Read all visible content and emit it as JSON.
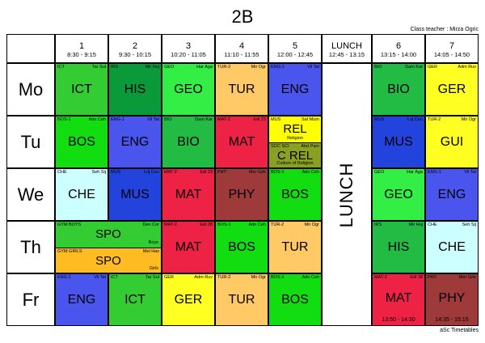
{
  "title": "2B",
  "class_teacher": "Class teacher : Mirza Ogric",
  "footer": "aSc Timetables",
  "periods": [
    {
      "num": "1",
      "time": "8:30 - 9:15"
    },
    {
      "num": "2",
      "time": "9:30 - 10:15"
    },
    {
      "num": "3",
      "time": "10:20 - 11:05"
    },
    {
      "num": "4",
      "time": "11:10 - 11:55"
    },
    {
      "num": "5",
      "time": "12:00 - 12:45"
    },
    {
      "num": "LUNCH",
      "time": "12:45 - 13:15"
    },
    {
      "num": "6",
      "time": "13:15 - 14:00"
    },
    {
      "num": "7",
      "time": "14:05 - 14:50"
    }
  ],
  "lunch_label": "LUNCH",
  "days": [
    {
      "name": "Mo",
      "slots": [
        {
          "parts": [
            {
              "cls": "ICT",
              "tch": "Tar Sul",
              "subj": "ICT",
              "color": "#33cc33"
            }
          ]
        },
        {
          "parts": [
            {
              "cls": "IRS",
              "tch": "Mir Huj",
              "subj": "HIS",
              "color": "#0b9a3a"
            }
          ]
        },
        {
          "parts": [
            {
              "cls": "GEO",
              "tch": "Har Aga",
              "subj": "GEO",
              "color": "#33ee44"
            }
          ]
        },
        {
          "parts": [
            {
              "cls": "TUR-2",
              "tch": "Mir Ogr",
              "subj": "TUR",
              "color": "#ffc966"
            }
          ]
        },
        {
          "parts": [
            {
              "cls": "ENG-1",
              "tch": "Vil Tat",
              "subj": "ENG",
              "color": "#4a55ee"
            }
          ]
        },
        null,
        {
          "parts": [
            {
              "cls": "BIO",
              "tch": "Dam Kar",
              "subj": "BIO",
              "color": "#22bb44"
            }
          ]
        },
        {
          "parts": [
            {
              "cls": "GER",
              "tch": "Adm Ruv",
              "subj": "GER",
              "color": "#ffff22"
            }
          ]
        }
      ]
    },
    {
      "name": "Tu",
      "slots": [
        {
          "parts": [
            {
              "cls": "BOS-1",
              "tch": "Adn Ceh",
              "subj": "BOS",
              "color": "#11dd11"
            }
          ]
        },
        {
          "parts": [
            {
              "cls": "ENG-1",
              "tch": "Vil Tat",
              "subj": "ENG",
              "color": "#4a55ee"
            }
          ]
        },
        {
          "parts": [
            {
              "cls": "BIO",
              "tch": "Dam Kar",
              "subj": "BIO",
              "color": "#22bb44"
            }
          ]
        },
        {
          "parts": [
            {
              "cls": "MAT-2",
              "tch": "Edi 23",
              "subj": "MAT",
              "color": "#ee2244"
            }
          ]
        },
        {
          "parts": [
            {
              "cls": "MUS",
              "tch": "Saf Mum",
              "subj": "REL",
              "color": "#ffff00",
              "room": "Religion"
            },
            {
              "cls": "SOC SCI",
              "tch": "Abd Pam",
              "subj": "C REL",
              "color": "#8aa022",
              "room": "Culture of Religion"
            }
          ]
        },
        null,
        {
          "parts": [
            {
              "cls": "MUS",
              "tch": "Loj Ceu",
              "subj": "MUS",
              "color": "#2244dd"
            }
          ]
        },
        {
          "parts": [
            {
              "cls": "TUR-2",
              "tch": "Mir Ogr",
              "subj": "GUI",
              "color": "#ffff22"
            }
          ]
        }
      ]
    },
    {
      "name": "We",
      "slots": [
        {
          "parts": [
            {
              "cls": "CHE",
              "tch": "Seh Sij",
              "subj": "CHE",
              "color": "#ccffff"
            }
          ]
        },
        {
          "parts": [
            {
              "cls": "MUS",
              "tch": "Loj Ceu",
              "subj": "MUS",
              "color": "#2244dd"
            }
          ]
        },
        {
          "parts": [
            {
              "cls": "MAT-2",
              "tch": "Edi 23",
              "subj": "MAT",
              "color": "#ee2244"
            }
          ]
        },
        {
          "parts": [
            {
              "cls": "PHY",
              "tch": "Mer Gök",
              "subj": "PHY",
              "color": "#9e3a3a"
            }
          ]
        },
        {
          "parts": [
            {
              "cls": "BOS-1",
              "tch": "Adn Ceh",
              "subj": "BOS",
              "color": "#11dd11"
            }
          ]
        },
        null,
        {
          "parts": [
            {
              "cls": "GEO",
              "tch": "Har Aga",
              "subj": "GEO",
              "color": "#33ee44"
            }
          ]
        },
        {
          "parts": [
            {
              "cls": "ENG-1",
              "tch": "Vil Tat",
              "subj": "ENG",
              "color": "#4a55ee"
            }
          ]
        }
      ]
    },
    {
      "name": "Th",
      "slots": [
        {
          "span": 2,
          "parts": [
            {
              "cls": "GYM BOYS",
              "tch": "Den Cor",
              "subj": "SPO",
              "color": "#33cc33",
              "room": "Boys"
            },
            {
              "cls": "GYM GIRLS",
              "tch": "Mel Has",
              "subj": "SPO",
              "color": "#ffbb22",
              "room": "Girls"
            }
          ]
        },
        {
          "parts": [
            {
              "cls": "MAT-2",
              "tch": "Edi 28",
              "subj": "MAT",
              "color": "#ee2244"
            }
          ]
        },
        {
          "parts": [
            {
              "cls": "BOS-1",
              "tch": "Adn Ceh",
              "subj": "BOS",
              "color": "#11dd11"
            }
          ]
        },
        {
          "parts": [
            {
              "cls": "TUR-2",
              "tch": "Mir Ogr",
              "subj": "TUR",
              "color": "#ffc966"
            }
          ]
        },
        null,
        {
          "parts": [
            {
              "cls": "IRS",
              "tch": "Mir Huj",
              "subj": "HIS",
              "color": "#22bb44"
            }
          ]
        },
        {
          "parts": [
            {
              "cls": "CHE",
              "tch": "Seh Sij",
              "subj": "CHE",
              "color": "#ccffff"
            }
          ]
        }
      ]
    },
    {
      "name": "Fr",
      "slots": [
        {
          "parts": [
            {
              "cls": "ENG-1",
              "tch": "Vil Tat",
              "subj": "ENG",
              "color": "#4a55ee"
            }
          ]
        },
        {
          "parts": [
            {
              "cls": "ICT",
              "tch": "Tar Sul",
              "subj": "ICT",
              "color": "#33cc33"
            }
          ]
        },
        {
          "parts": [
            {
              "cls": "GER",
              "tch": "Adm Ruv",
              "subj": "GER",
              "color": "#ffff22"
            }
          ]
        },
        {
          "parts": [
            {
              "cls": "TUR-2",
              "tch": "Mir Ogr",
              "subj": "TUR",
              "color": "#ffc966"
            }
          ]
        },
        {
          "parts": [
            {
              "cls": "BOS-1",
              "tch": "Adn Ceh",
              "subj": "BOS",
              "color": "#11dd11"
            }
          ]
        },
        null,
        {
          "parts": [
            {
              "cls": "MAT-2",
              "tch": "Edi 28",
              "subj": "MAT",
              "color": "#ee2244",
              "bottom_time": "13:50 - 14:30"
            }
          ]
        },
        {
          "parts": [
            {
              "cls": "PHY",
              "tch": "Mer Gök",
              "subj": "PHY",
              "color": "#9e3a3a",
              "bottom_time": "14:35 - 15:15"
            }
          ]
        }
      ]
    }
  ]
}
